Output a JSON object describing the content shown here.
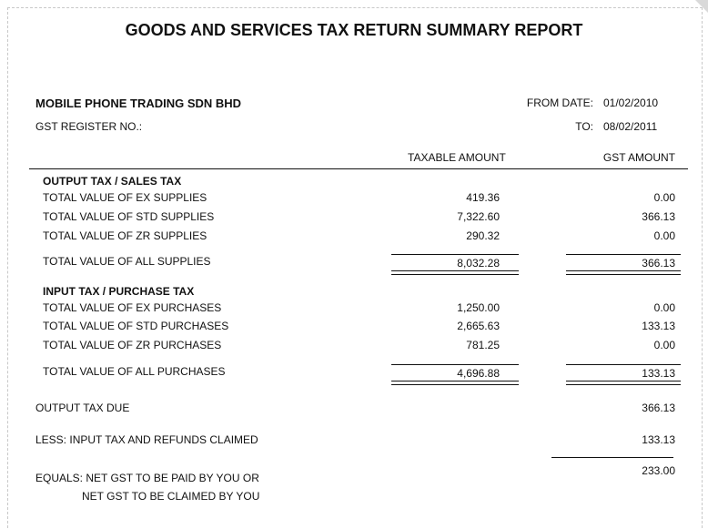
{
  "report": {
    "title": "GOODS AND SERVICES TAX RETURN SUMMARY REPORT",
    "company": "MOBILE PHONE TRADING SDN BHD",
    "gst_register_label": "GST REGISTER NO.:",
    "from_date_label": "FROM DATE:",
    "from_date": "01/02/2010",
    "to_label": "TO:",
    "to_date": "08/02/2011"
  },
  "columns": {
    "taxable": "TAXABLE AMOUNT",
    "gst": "GST AMOUNT"
  },
  "output_section": {
    "heading": "OUTPUT TAX / SALES TAX",
    "rows": [
      {
        "label": "TOTAL VALUE OF EX SUPPLIES",
        "taxable": "419.36",
        "gst": "0.00"
      },
      {
        "label": "TOTAL VALUE OF STD SUPPLIES",
        "taxable": "7,322.60",
        "gst": "366.13"
      },
      {
        "label": "TOTAL VALUE OF ZR SUPPLIES",
        "taxable": "290.32",
        "gst": "0.00"
      }
    ],
    "total": {
      "label": "TOTAL VALUE OF ALL SUPPLIES",
      "taxable": "8,032.28",
      "gst": "366.13"
    }
  },
  "input_section": {
    "heading": "INPUT TAX / PURCHASE TAX",
    "rows": [
      {
        "label": "TOTAL VALUE OF EX PURCHASES",
        "taxable": "1,250.00",
        "gst": "0.00"
      },
      {
        "label": "TOTAL VALUE OF STD PURCHASES",
        "taxable": "2,665.63",
        "gst": "133.13"
      },
      {
        "label": "TOTAL VALUE OF ZR PURCHASES",
        "taxable": "781.25",
        "gst": "0.00"
      }
    ],
    "total": {
      "label": "TOTAL VALUE OF ALL PURCHASES",
      "taxable": "4,696.88",
      "gst": "133.13"
    }
  },
  "summary": {
    "output_due_label": "OUTPUT TAX DUE",
    "output_due": "366.13",
    "less_label": "LESS: INPUT TAX AND REFUNDS CLAIMED",
    "less_value": "133.13",
    "equals_label_1": "EQUALS: NET GST TO BE PAID BY YOU OR",
    "equals_label_2": "NET GST TO BE CLAIMED BY YOU",
    "net_value": "233.00"
  }
}
